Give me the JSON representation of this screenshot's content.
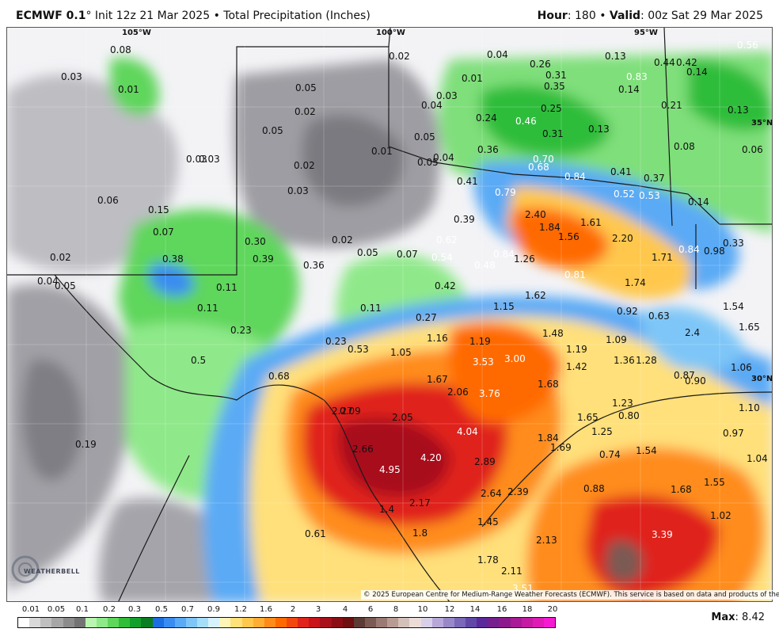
{
  "header": {
    "model": "ECMWF 0.1",
    "degree_mark": "°",
    "init_text": "Init 12z 21 Mar 2025",
    "bullet": "•",
    "product": "Total Precipitation (Inches)",
    "hour_label": "Hour",
    "hour_value": ": 180",
    "valid_label": "Valid",
    "valid_value": ": 00z Sat 29 Mar 2025"
  },
  "coords": {
    "lon105": "105°W",
    "lon100": "100°W",
    "lon95": "95°W",
    "lat35": "35°N",
    "lat30": "30°N"
  },
  "map_labels": [
    {
      "text": "0.08"
    },
    {
      "text": "0.03"
    },
    {
      "text": "0.01"
    },
    {
      "text": "0.02"
    },
    {
      "text": "0.04"
    },
    {
      "text": "0.26"
    },
    {
      "text": "0.13"
    },
    {
      "text": "0.56"
    },
    {
      "text": "0.44"
    },
    {
      "text": "0.42"
    },
    {
      "text": "0.31"
    },
    {
      "text": "0.83"
    },
    {
      "text": "0.14"
    },
    {
      "text": "0.35"
    },
    {
      "text": "0.01"
    },
    {
      "text": "0.05"
    },
    {
      "text": "0.03"
    },
    {
      "text": "0.02"
    },
    {
      "text": "0.04"
    },
    {
      "text": "0.25"
    },
    {
      "text": "0.14"
    },
    {
      "text": "0.21"
    },
    {
      "text": "0.13"
    },
    {
      "text": "0.24"
    },
    {
      "text": "0.46"
    },
    {
      "text": "0.13"
    },
    {
      "text": "0.05"
    },
    {
      "text": "0.05"
    },
    {
      "text": "0.31"
    },
    {
      "text": "0.03"
    },
    {
      "text": "0.01"
    },
    {
      "text": "0.36"
    },
    {
      "text": "0.08"
    },
    {
      "text": "0.06"
    },
    {
      "text": "0.03"
    },
    {
      "text": "0.04"
    },
    {
      "text": "0.70"
    },
    {
      "text": "0.02"
    },
    {
      "text": "0.05"
    },
    {
      "text": "0.68"
    },
    {
      "text": "0.84"
    },
    {
      "text": "0.41"
    },
    {
      "text": "0.37"
    },
    {
      "text": "0.41"
    },
    {
      "text": "0.79"
    },
    {
      "text": "0.52"
    },
    {
      "text": "0.53"
    },
    {
      "text": "0.03"
    },
    {
      "text": "0.06"
    },
    {
      "text": "0.15"
    },
    {
      "text": "2.40"
    },
    {
      "text": "0.14"
    },
    {
      "text": "0.39"
    },
    {
      "text": "1.61"
    },
    {
      "text": "0.07"
    },
    {
      "text": "1.84"
    },
    {
      "text": "1.56"
    },
    {
      "text": "2.20"
    },
    {
      "text": "0.33"
    },
    {
      "text": "0.30"
    },
    {
      "text": "0.02"
    },
    {
      "text": "0.62"
    },
    {
      "text": "0.02"
    },
    {
      "text": "0.39"
    },
    {
      "text": "0.05"
    },
    {
      "text": "0.07"
    },
    {
      "text": "0.54"
    },
    {
      "text": "0.84"
    },
    {
      "text": "1.26"
    },
    {
      "text": "1.71"
    },
    {
      "text": "0.84"
    },
    {
      "text": "0.98"
    },
    {
      "text": "0.38"
    },
    {
      "text": "0.36"
    },
    {
      "text": "0.48"
    },
    {
      "text": "0.81"
    },
    {
      "text": "0.04"
    },
    {
      "text": "0.05"
    },
    {
      "text": "0.11"
    },
    {
      "text": "0.42"
    },
    {
      "text": "1.74"
    },
    {
      "text": "1.62"
    },
    {
      "text": "1.15"
    },
    {
      "text": "1.54"
    },
    {
      "text": "0.11"
    },
    {
      "text": "0.11"
    },
    {
      "text": "0.92"
    },
    {
      "text": "0.63"
    },
    {
      "text": "0.27"
    },
    {
      "text": "1.65"
    },
    {
      "text": "0.23"
    },
    {
      "text": "1.48"
    },
    {
      "text": "2.4"
    },
    {
      "text": "1.16"
    },
    {
      "text": "1.19"
    },
    {
      "text": "1.09"
    },
    {
      "text": "0.23"
    },
    {
      "text": "0.53"
    },
    {
      "text": "1.05"
    },
    {
      "text": "1.19"
    },
    {
      "text": "0.5"
    },
    {
      "text": "3.53"
    },
    {
      "text": "3.00"
    },
    {
      "text": "1.36"
    },
    {
      "text": "1.28"
    },
    {
      "text": "1.42"
    },
    {
      "text": "1.06"
    },
    {
      "text": "0.68"
    },
    {
      "text": "1.67"
    },
    {
      "text": "0.87"
    },
    {
      "text": "0.90"
    },
    {
      "text": "1.68"
    },
    {
      "text": "2.06"
    },
    {
      "text": "3.76"
    },
    {
      "text": "1.23"
    },
    {
      "text": "1.10"
    },
    {
      "text": "2.27"
    },
    {
      "text": "0.09"
    },
    {
      "text": "2.05"
    },
    {
      "text": "1.65"
    },
    {
      "text": "0.80"
    },
    {
      "text": "4.04"
    },
    {
      "text": "1.25"
    },
    {
      "text": "0.97"
    },
    {
      "text": "1.84"
    },
    {
      "text": "0.19"
    },
    {
      "text": "2.66"
    },
    {
      "text": "1.69"
    },
    {
      "text": "0.74"
    },
    {
      "text": "1.54"
    },
    {
      "text": "4.20"
    },
    {
      "text": "1.04"
    },
    {
      "text": "2.89"
    },
    {
      "text": "4.95"
    },
    {
      "text": "1.55"
    },
    {
      "text": "0.88"
    },
    {
      "text": "2.64"
    },
    {
      "text": "2.39"
    },
    {
      "text": "1.68"
    },
    {
      "text": "2.17"
    },
    {
      "text": "1.4"
    },
    {
      "text": "1.02"
    },
    {
      "text": "1.45"
    },
    {
      "text": "0.61"
    },
    {
      "text": "1.8"
    },
    {
      "text": "2.13"
    },
    {
      "text": "3.39"
    },
    {
      "text": "1.78"
    },
    {
      "text": "2.11"
    },
    {
      "text": "3.51"
    }
  ],
  "copyright": "© 2025 European Centre for Medium-Range Weather Forecasts (ECMWF). This service is based on data and products of the ECMWF.",
  "logo_text": "WEATHERBELL",
  "legend": {
    "ticks": [
      "0.01",
      "0.05",
      "0.1",
      "0.2",
      "0.3",
      "0.5",
      "0.7",
      "0.9",
      "1.2",
      "1.6",
      "2",
      "3",
      "4",
      "6",
      "8",
      "10",
      "12",
      "14",
      "16",
      "18",
      "20"
    ],
    "colors": [
      "#ffffff",
      "#d9d9d9",
      "#bfbfbf",
      "#a6a6a6",
      "#8c8c8c",
      "#737373",
      "#b9f5b0",
      "#8fe98a",
      "#5fd65c",
      "#2fbd3a",
      "#13a02a",
      "#0b7d22",
      "#1c6fe0",
      "#3a8cf0",
      "#5aaaf5",
      "#7ec6f7",
      "#a6defa",
      "#d6f2fc",
      "#fff4b8",
      "#ffe07a",
      "#ffc84d",
      "#ffad33",
      "#ff8c1a",
      "#ff6a00",
      "#f2480d",
      "#e0241a",
      "#c8141a",
      "#a8101a",
      "#8a0e14",
      "#6e0f10",
      "#5c3b35",
      "#7a5a52",
      "#9a7a72",
      "#b89c94",
      "#d4c0ba",
      "#ecdcd8",
      "#d8d0e8",
      "#b8a8d8",
      "#9888c8",
      "#7a68b8",
      "#6048a8",
      "#5a2a9a",
      "#74208e",
      "#8c1a8c",
      "#a81a96",
      "#c51aa3",
      "#e01ab5",
      "#f51ad2"
    ]
  },
  "max": {
    "label": "Max",
    "value": ": 8.42"
  }
}
